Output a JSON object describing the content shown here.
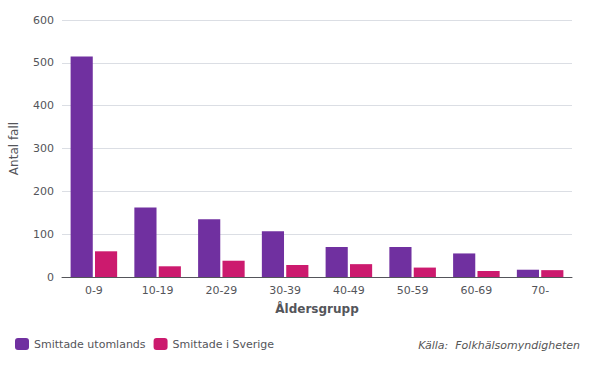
{
  "chart_data": {
    "type": "bar",
    "xlabel": "Åldersgrupp",
    "ylabel": "Antal fall",
    "categories": [
      "0-9",
      "10-19",
      "20-29",
      "30-39",
      "40-49",
      "50-59",
      "60-69",
      "70-"
    ],
    "series": [
      {
        "name": "Smittade utomlands",
        "color": "#7030a0",
        "values": [
          515,
          162,
          135,
          107,
          70,
          70,
          55,
          17
        ]
      },
      {
        "name": "Smittade i Sverige",
        "color": "#cc1a6e",
        "values": [
          60,
          25,
          38,
          28,
          30,
          22,
          14,
          16
        ]
      }
    ],
    "ylim": [
      0,
      600
    ],
    "yticks": [
      0,
      100,
      200,
      300,
      400,
      500,
      600
    ],
    "grid": true,
    "legend": "lower left",
    "annotations": [
      "Källa:  Folkhälsomyndigheten"
    ]
  }
}
